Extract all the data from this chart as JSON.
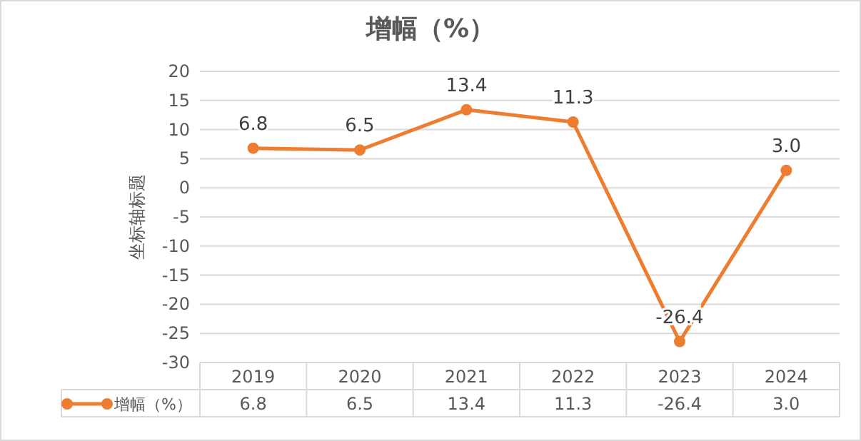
{
  "chart_data": {
    "type": "line",
    "title": "增幅（%）",
    "ylabel": "坐标轴标题",
    "categories": [
      "2019",
      "2020",
      "2021",
      "2022",
      "2023",
      "2024"
    ],
    "series": [
      {
        "name": "增幅（%）",
        "color": "#ed7d31",
        "values": [
          6.8,
          6.5,
          13.4,
          11.3,
          -26.4,
          3.0
        ],
        "value_labels": [
          "6.8",
          "6.5",
          "13.4",
          "11.3",
          "-26.4",
          "3.0"
        ]
      }
    ],
    "ylim": [
      -30,
      20
    ],
    "yticks": [
      -30,
      -25,
      -20,
      -15,
      -10,
      -5,
      0,
      5,
      10,
      15,
      20
    ],
    "grid": "y",
    "legend": "bottom",
    "marker": "circle",
    "line_style": "solid"
  }
}
